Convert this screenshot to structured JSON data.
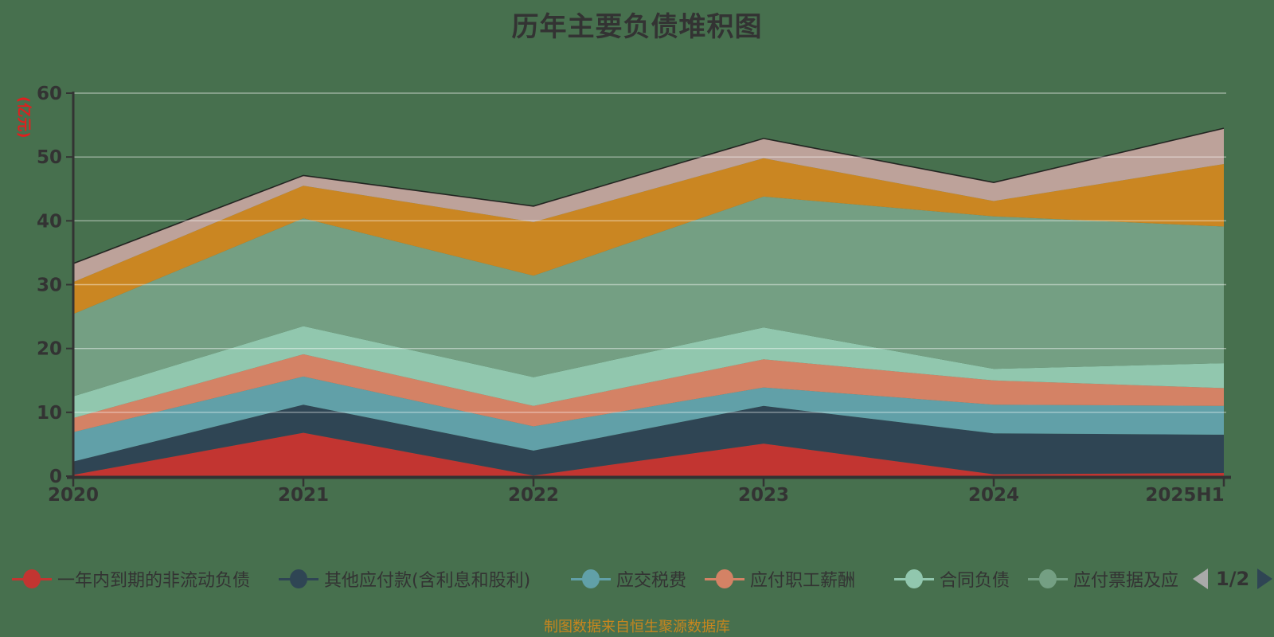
{
  "title": "历年主要负债堆积图",
  "footer": "制图数据来自恒生聚源数据库",
  "y_axis": {
    "name": "(亿元)",
    "name_color": "#e01f1f",
    "ticks": [
      "0",
      "10",
      "20",
      "30",
      "40",
      "50",
      "60"
    ],
    "min": 0,
    "max": 60,
    "interval": 10
  },
  "x_axis": {
    "categories": [
      "2020",
      "2021",
      "2022",
      "2023",
      "2024",
      "2025H1"
    ]
  },
  "legend": {
    "items": [
      {
        "label": "一年内到期的非流动负债",
        "color": "#c23531",
        "truncated": false
      },
      {
        "label": "其他应付款(含利息和股利)",
        "color": "#2f4554",
        "truncated": false
      },
      {
        "label": "应交税费",
        "color": "#61a0a8",
        "truncated": false
      },
      {
        "label": "应付职工薪酬",
        "color": "#d48265",
        "truncated": false
      },
      {
        "label": "合同负债",
        "color": "#91c7ae",
        "truncated": false
      },
      {
        "label": "应付票据及应",
        "color": "#749f83",
        "truncated": true
      }
    ],
    "pagination": {
      "text": "1/2",
      "prev_enabled": false,
      "next_enabled": true
    }
  },
  "chart_data": {
    "type": "area",
    "stacked": true,
    "title": "历年主要负债堆积图",
    "unit": "亿元",
    "categories": [
      "2020",
      "2021",
      "2022",
      "2023",
      "2024",
      "2025H1"
    ],
    "ylim": [
      0,
      60
    ],
    "grid": true,
    "legend_position": "bottom",
    "series": [
      {
        "name": "一年内到期的非流动负债",
        "color": "#c23531",
        "visible_in_legend": true,
        "values": [
          0.2,
          6.8,
          0.1,
          5.1,
          0.3,
          0.5
        ]
      },
      {
        "name": "其他应付款(含利息和股利)",
        "color": "#2f4554",
        "visible_in_legend": true,
        "values": [
          2.1,
          4.4,
          3.9,
          5.9,
          6.4,
          6.0
        ]
      },
      {
        "name": "应交税费",
        "color": "#61a0a8",
        "visible_in_legend": true,
        "values": [
          4.6,
          4.4,
          3.8,
          2.9,
          4.5,
          4.5
        ]
      },
      {
        "name": "应付职工薪酬",
        "color": "#d48265",
        "visible_in_legend": true,
        "values": [
          2.2,
          3.5,
          3.2,
          4.4,
          3.8,
          2.8
        ]
      },
      {
        "name": "合同负债",
        "color": "#91c7ae",
        "visible_in_legend": true,
        "values": [
          3.4,
          4.4,
          4.5,
          5.0,
          1.8,
          3.9
        ]
      },
      {
        "name": "应付票据及应",
        "color": "#749f83",
        "visible_in_legend": true,
        "values": [
          12.9,
          16.9,
          15.9,
          20.5,
          23.9,
          21.4
        ]
      },
      {
        "name": "",
        "color": "#ca8622",
        "visible_in_legend": false,
        "values": [
          5.0,
          5.1,
          8.4,
          6.0,
          2.4,
          9.8
        ]
      },
      {
        "name": "",
        "color": "#bda29a",
        "visible_in_legend": false,
        "values": [
          2.9,
          1.6,
          2.5,
          3.1,
          2.9,
          5.6
        ]
      }
    ],
    "totals": [
      33.3,
      47.1,
      42.3,
      52.9,
      46.0,
      54.5
    ]
  },
  "colors": {
    "background": "#47704e",
    "axis": "#333333",
    "tick_label": "#333333",
    "grid_line": "rgba(255,255,255,0.45)",
    "title": "#333333",
    "footer": "#c8861e",
    "pager_prev": "#a9a9a9",
    "pager_next": "#2f4554",
    "stack_top_edge": "#141414"
  }
}
